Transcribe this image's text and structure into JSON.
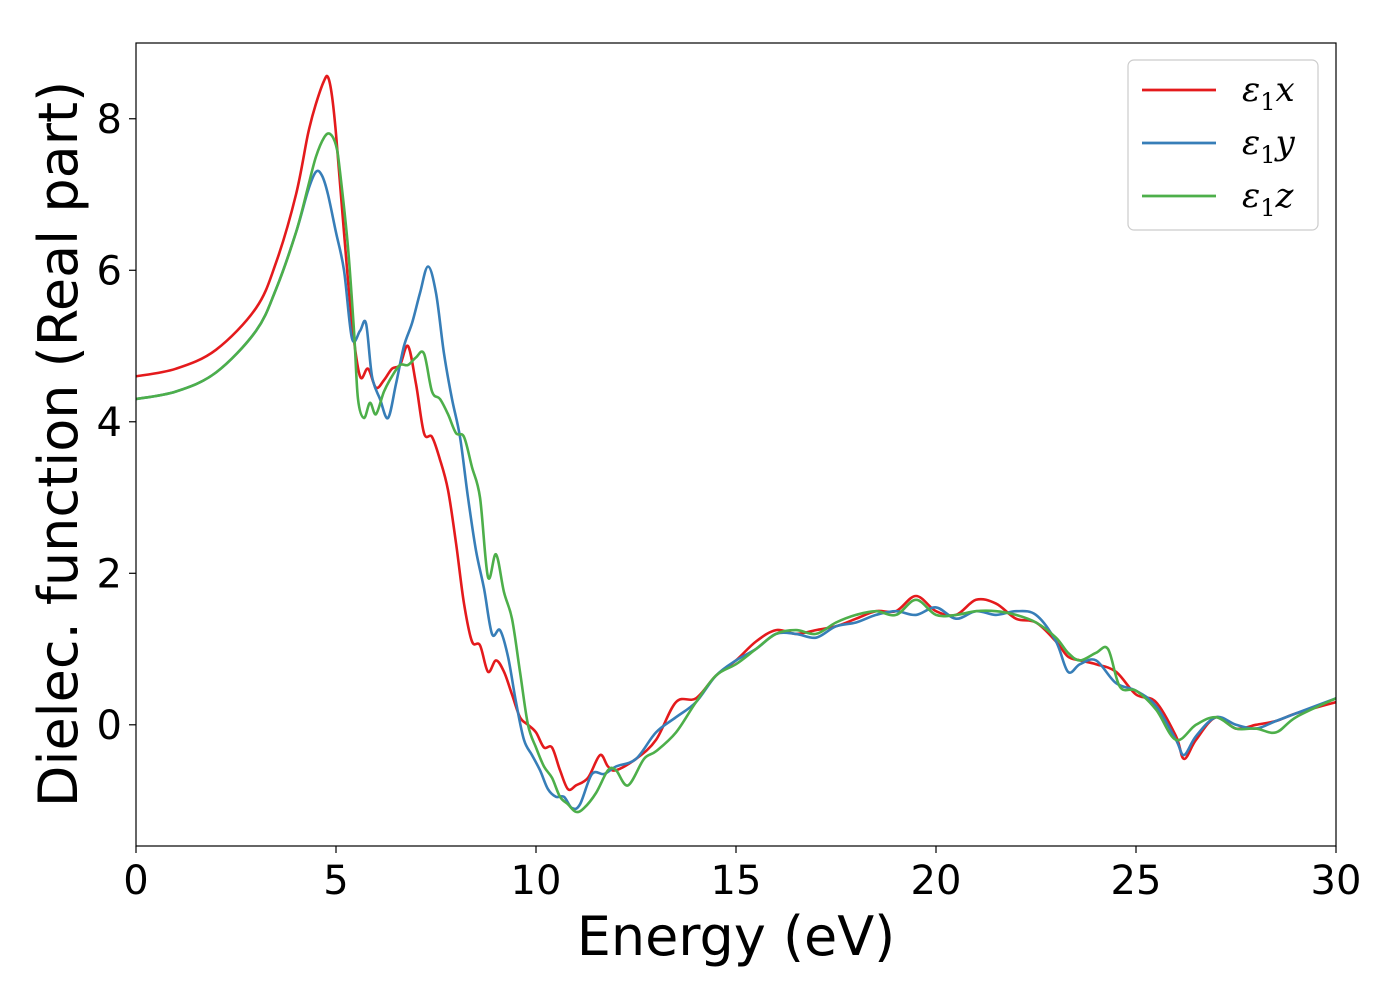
{
  "chart_data": {
    "type": "line",
    "title": "",
    "xlabel": "Energy (eV)",
    "ylabel": "Dielec. function (Real part)",
    "xlim": [
      0,
      30
    ],
    "ylim": [
      -1.6,
      9.0
    ],
    "xticks": [
      0,
      5,
      10,
      15,
      20,
      25,
      30
    ],
    "yticks": [
      0,
      2,
      4,
      6,
      8
    ],
    "grid": false,
    "legend_position": "top-right",
    "series": [
      {
        "name": "ε₁x",
        "legend_base": "ε",
        "legend_sub": "1",
        "legend_suffix": "x",
        "color": "#e41a1c",
        "x": [
          0,
          1,
          2,
          3,
          3.5,
          4,
          4.3,
          4.5,
          4.7,
          4.8,
          4.9,
          5.0,
          5.2,
          5.4,
          5.6,
          5.8,
          6.0,
          6.2,
          6.4,
          6.6,
          6.8,
          7.0,
          7.2,
          7.4,
          7.6,
          7.8,
          8.0,
          8.2,
          8.4,
          8.6,
          8.8,
          9.0,
          9.2,
          9.4,
          9.6,
          9.8,
          10.0,
          10.2,
          10.4,
          10.6,
          10.8,
          11.0,
          11.3,
          11.6,
          11.8,
          12.0,
          12.5,
          13.0,
          13.5,
          14.0,
          14.5,
          15.0,
          15.5,
          16.0,
          16.5,
          17.0,
          17.5,
          18.0,
          18.5,
          19.0,
          19.5,
          20.0,
          20.5,
          21.0,
          21.5,
          22.0,
          22.5,
          23.0,
          23.3,
          23.6,
          24.0,
          24.5,
          25.0,
          25.5,
          26.0,
          26.2,
          26.5,
          27.0,
          27.5,
          28.0,
          28.5,
          29.0,
          30.0
        ],
        "y": [
          4.6,
          4.7,
          4.95,
          5.5,
          6.1,
          7.0,
          7.8,
          8.2,
          8.5,
          8.55,
          8.3,
          7.8,
          6.5,
          5.3,
          4.6,
          4.7,
          4.45,
          4.55,
          4.7,
          4.75,
          5.0,
          4.5,
          3.85,
          3.8,
          3.5,
          3.1,
          2.4,
          1.6,
          1.1,
          1.05,
          0.7,
          0.85,
          0.7,
          0.4,
          0.1,
          0.0,
          -0.1,
          -0.3,
          -0.3,
          -0.6,
          -0.85,
          -0.8,
          -0.7,
          -0.4,
          -0.55,
          -0.6,
          -0.45,
          -0.2,
          0.3,
          0.35,
          0.65,
          0.85,
          1.1,
          1.25,
          1.2,
          1.25,
          1.3,
          1.4,
          1.5,
          1.5,
          1.7,
          1.5,
          1.45,
          1.65,
          1.6,
          1.4,
          1.35,
          1.1,
          0.9,
          0.85,
          0.8,
          0.7,
          0.4,
          0.3,
          -0.15,
          -0.45,
          -0.2,
          0.1,
          -0.05,
          0.0,
          0.05,
          0.15,
          0.3
        ]
      },
      {
        "name": "ε₁y",
        "legend_base": "ε",
        "legend_sub": "1",
        "legend_suffix": "y",
        "color": "#377eb8",
        "x": [
          0,
          1,
          2,
          3,
          3.5,
          4,
          4.3,
          4.5,
          4.65,
          4.8,
          5.0,
          5.2,
          5.4,
          5.6,
          5.75,
          5.9,
          6.1,
          6.3,
          6.5,
          6.7,
          6.9,
          7.1,
          7.3,
          7.5,
          7.7,
          7.9,
          8.1,
          8.3,
          8.5,
          8.7,
          8.9,
          9.1,
          9.3,
          9.5,
          9.7,
          9.9,
          10.1,
          10.3,
          10.5,
          10.7,
          10.9,
          11.1,
          11.4,
          11.7,
          12.0,
          12.5,
          13.0,
          13.5,
          14.0,
          14.5,
          15.0,
          15.5,
          16.0,
          16.5,
          17.0,
          17.5,
          18.0,
          18.5,
          19.0,
          19.5,
          20.0,
          20.5,
          21.0,
          21.5,
          22.0,
          22.5,
          23.0,
          23.3,
          23.6,
          24.0,
          24.5,
          25.0,
          25.5,
          26.0,
          26.2,
          26.5,
          27.0,
          27.5,
          28.0,
          28.5,
          29.0,
          30.0
        ],
        "y": [
          4.3,
          4.4,
          4.65,
          5.2,
          5.75,
          6.5,
          7.05,
          7.3,
          7.25,
          7.0,
          6.5,
          6.0,
          5.1,
          5.2,
          5.3,
          4.6,
          4.3,
          4.05,
          4.5,
          5.0,
          5.3,
          5.7,
          6.05,
          5.7,
          4.9,
          4.3,
          3.8,
          3.0,
          2.3,
          1.8,
          1.2,
          1.25,
          0.9,
          0.3,
          -0.2,
          -0.4,
          -0.6,
          -0.85,
          -0.95,
          -0.95,
          -1.1,
          -1.05,
          -0.65,
          -0.65,
          -0.55,
          -0.45,
          -0.1,
          0.1,
          0.3,
          0.65,
          0.85,
          1.0,
          1.2,
          1.2,
          1.15,
          1.3,
          1.35,
          1.45,
          1.5,
          1.45,
          1.55,
          1.4,
          1.5,
          1.45,
          1.5,
          1.45,
          1.1,
          0.7,
          0.8,
          0.85,
          0.55,
          0.45,
          0.25,
          -0.2,
          -0.4,
          -0.15,
          0.1,
          0.0,
          -0.05,
          0.05,
          0.15,
          0.35
        ]
      },
      {
        "name": "ε₁z",
        "legend_base": "ε",
        "legend_sub": "1",
        "legend_suffix": "z",
        "color": "#4daf4a",
        "x": [
          0,
          1,
          2,
          3,
          3.5,
          4,
          4.3,
          4.5,
          4.7,
          4.85,
          5.0,
          5.1,
          5.3,
          5.45,
          5.55,
          5.7,
          5.85,
          6.0,
          6.2,
          6.4,
          6.6,
          6.8,
          7.0,
          7.2,
          7.4,
          7.6,
          7.8,
          8.0,
          8.2,
          8.4,
          8.6,
          8.8,
          9.0,
          9.2,
          9.4,
          9.6,
          9.8,
          10.0,
          10.2,
          10.4,
          10.6,
          10.8,
          11.0,
          11.2,
          11.5,
          11.8,
          12.0,
          12.3,
          12.7,
          13.0,
          13.5,
          14.0,
          14.5,
          15.0,
          15.5,
          16.0,
          16.5,
          17.0,
          17.5,
          18.0,
          18.5,
          19.0,
          19.5,
          20.0,
          20.5,
          21.0,
          21.5,
          22.0,
          22.5,
          23.0,
          23.3,
          23.6,
          24.0,
          24.3,
          24.6,
          25.0,
          25.5,
          26.0,
          26.5,
          27.0,
          27.5,
          28.0,
          28.5,
          29.0,
          30.0
        ],
        "y": [
          4.3,
          4.4,
          4.65,
          5.2,
          5.75,
          6.5,
          7.1,
          7.5,
          7.75,
          7.8,
          7.65,
          7.3,
          6.3,
          5.2,
          4.3,
          4.05,
          4.25,
          4.1,
          4.4,
          4.6,
          4.75,
          4.75,
          4.85,
          4.9,
          4.4,
          4.3,
          4.1,
          3.85,
          3.8,
          3.4,
          3.0,
          1.95,
          2.25,
          1.75,
          1.4,
          0.7,
          0.0,
          -0.3,
          -0.55,
          -0.7,
          -0.95,
          -1.05,
          -1.15,
          -1.1,
          -0.9,
          -0.6,
          -0.6,
          -0.8,
          -0.45,
          -0.35,
          -0.1,
          0.3,
          0.65,
          0.8,
          1.0,
          1.2,
          1.25,
          1.2,
          1.35,
          1.45,
          1.5,
          1.45,
          1.65,
          1.45,
          1.45,
          1.5,
          1.5,
          1.45,
          1.35,
          1.15,
          0.95,
          0.85,
          0.95,
          1.0,
          0.5,
          0.45,
          0.2,
          -0.2,
          0.0,
          0.1,
          -0.05,
          -0.05,
          -0.1,
          0.1,
          0.35
        ]
      }
    ]
  }
}
